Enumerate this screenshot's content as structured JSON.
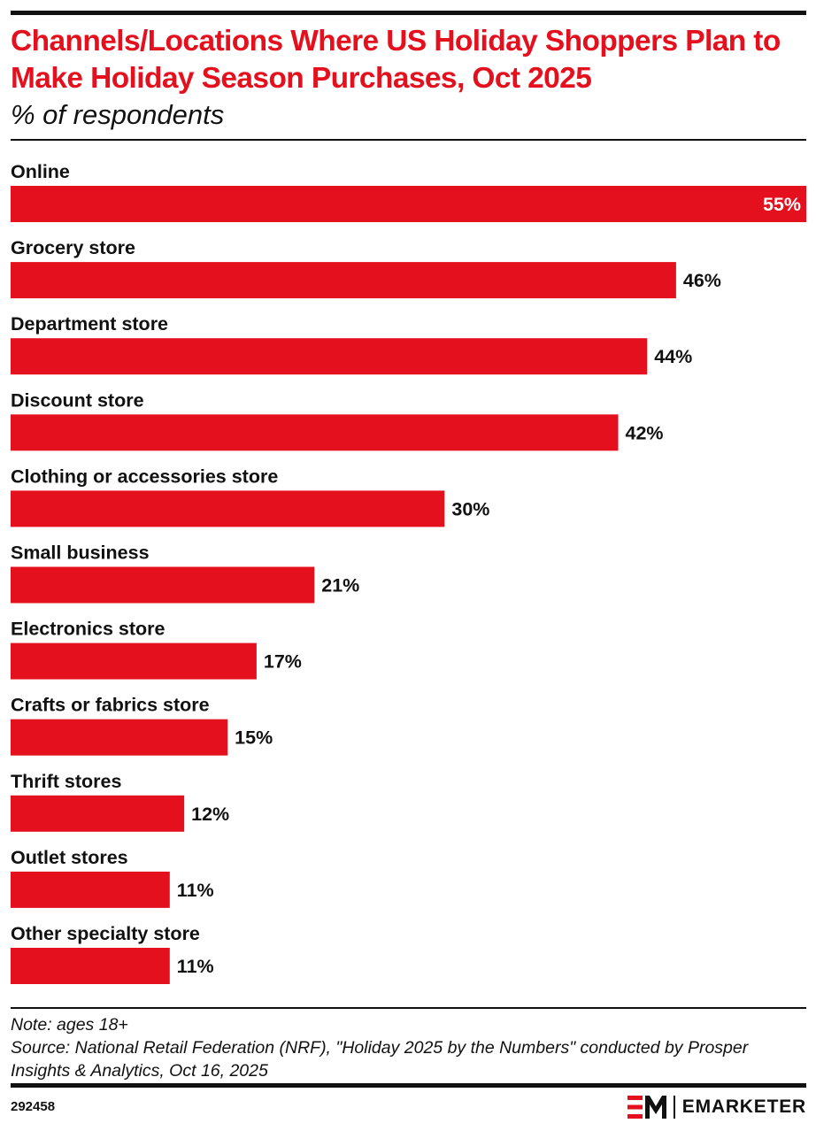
{
  "header": {
    "title": "Channels/Locations Where US Holiday Shoppers Plan to Make Holiday Season Purchases, Oct 2025",
    "subtitle": "% of respondents"
  },
  "chart_data": {
    "type": "bar",
    "orientation": "horizontal",
    "categories": [
      "Online",
      "Grocery store",
      "Department store",
      "Discount store",
      "Clothing or accessories store",
      "Small business",
      "Electronics store",
      "Crafts or fabrics store",
      "Thrift stores",
      "Outlet stores",
      "Other specialty store"
    ],
    "values": [
      55,
      46,
      44,
      42,
      30,
      21,
      17,
      15,
      12,
      11,
      11
    ],
    "value_labels": [
      "55%",
      "46%",
      "44%",
      "42%",
      "30%",
      "21%",
      "17%",
      "15%",
      "12%",
      "11%",
      "11%"
    ],
    "xlim": [
      0,
      55
    ],
    "bar_color": "#e4101d",
    "grid": false,
    "legend": "none"
  },
  "footer": {
    "note": "Note: ages 18+",
    "source": "Source: National Retail Federation (NRF), \"Holiday 2025 by the Numbers\" conducted by Prosper Insights & Analytics, Oct 16, 2025",
    "chart_id": "292458",
    "brand": "EMARKETER"
  },
  "colors": {
    "accent": "#e4101d",
    "text": "#111111",
    "background": "#ffffff"
  }
}
